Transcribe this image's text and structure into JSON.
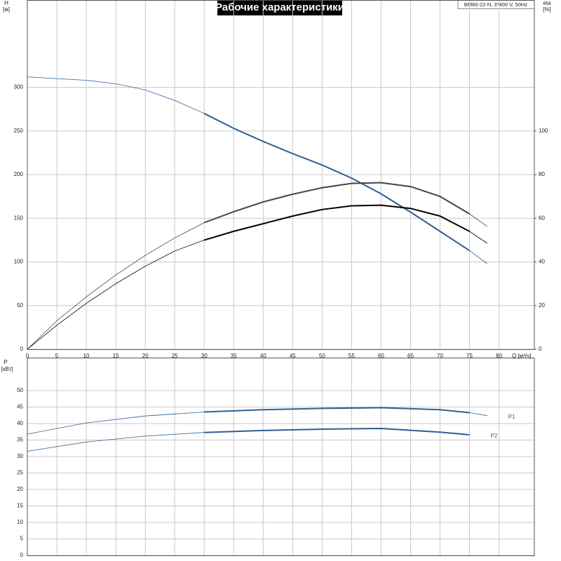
{
  "chart_data": [
    {
      "type": "line",
      "title": "Рабочие характеристики",
      "info": "BM60-22-N, 3*400 V, 50Hz",
      "y_label": [
        "H",
        "[м]"
      ],
      "y2_label": [
        "eta",
        "[%]"
      ],
      "x_label": "Q [м³/ч]",
      "x": [
        0,
        5,
        10,
        15,
        20,
        25,
        30,
        35,
        40,
        45,
        50,
        55,
        60,
        65,
        70,
        75,
        78
      ],
      "duty_range": [
        30,
        75
      ],
      "series": [
        {
          "color": "#2d5f93",
          "values": [
            312,
            310,
            308,
            304,
            297,
            285,
            270,
            253,
            238,
            224,
            211,
            196,
            178,
            157,
            135,
            113,
            98
          ]
        },
        {
          "color": "#444444",
          "axis": "y2",
          "values": [
            0,
            13,
            24,
            34,
            43,
            51,
            58,
            63,
            67.5,
            71,
            74,
            76,
            76.3,
            74.5,
            70,
            62,
            56.3
          ]
        },
        {
          "color": "#000000",
          "axis": "y2",
          "values": [
            0,
            11,
            21,
            30,
            38,
            45,
            50,
            54,
            57.5,
            61,
            64,
            65.7,
            66,
            64.5,
            61,
            54,
            48.5
          ]
        }
      ],
      "xlim": [
        0,
        86
      ],
      "xticks": [
        0,
        5,
        10,
        15,
        20,
        25,
        30,
        35,
        40,
        45,
        50,
        55,
        60,
        65,
        70,
        75,
        80
      ],
      "ylim": [
        0,
        400
      ],
      "yticks": [
        0,
        50,
        100,
        150,
        200,
        250,
        300
      ],
      "y2lim": [
        0,
        160
      ],
      "y2ticks": [
        0,
        20,
        40,
        60,
        80,
        100
      ],
      "grid": true
    },
    {
      "type": "line",
      "y_label": [
        "P",
        "[кВт]"
      ],
      "x": [
        0,
        10,
        20,
        30,
        40,
        50,
        60,
        70,
        75,
        78
      ],
      "duty_range": [
        30,
        75
      ],
      "series": [
        {
          "name": "P1",
          "color": "#2d5f93",
          "values": [
            36.8,
            40.2,
            42.3,
            43.5,
            44.2,
            44.6,
            44.8,
            44.2,
            43.3,
            42.4
          ]
        },
        {
          "name": "P2",
          "color": "#2d5f93",
          "values": [
            31.6,
            34.4,
            36.2,
            37.3,
            37.9,
            38.3,
            38.5,
            37.4,
            36.6,
            null
          ]
        }
      ],
      "xlim": [
        0,
        86
      ],
      "xticks": [
        0,
        5,
        10,
        15,
        20,
        25,
        30,
        35,
        40,
        45,
        50,
        55,
        60,
        65,
        70,
        75,
        80
      ],
      "xtick_labels": false,
      "ylim": [
        0,
        60
      ],
      "yticks": [
        0,
        5,
        10,
        15,
        20,
        25,
        30,
        35,
        40,
        45,
        50
      ],
      "grid": true
    }
  ]
}
